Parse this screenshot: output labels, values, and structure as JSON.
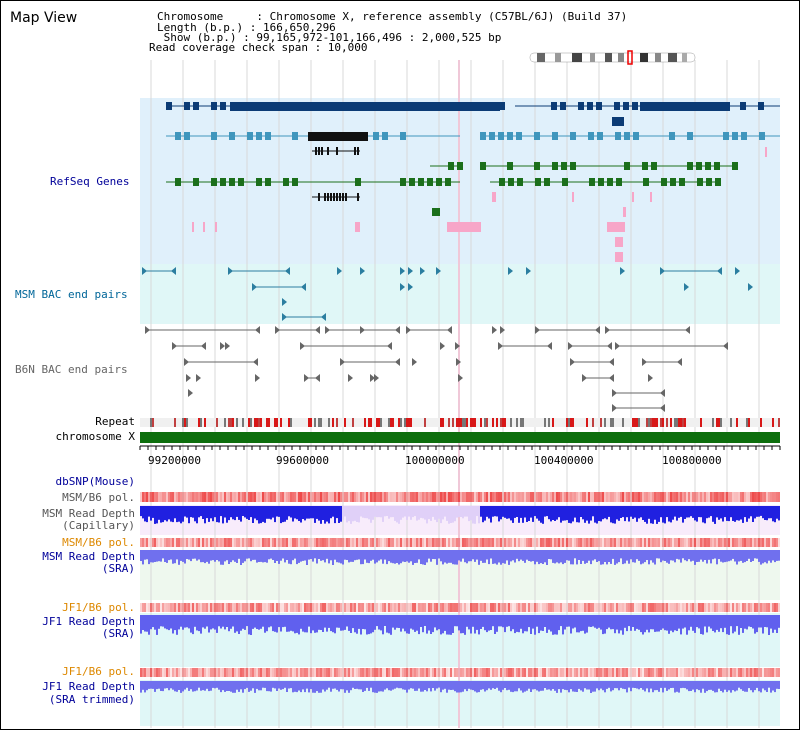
{
  "header": {
    "title": "Map View",
    "chromosome_line": "Chromosome     : Chromosome X, reference assembly (C57BL/6J) (Build 37)",
    "length_line": "Length (b.p.) : 166,650,296",
    "show_line": " Show (b.p.) : 99,165,972-101,166,496 : 2,000,525 bp",
    "span_line": "Read coverage check span : 10,000"
  },
  "tracks": {
    "refseq": "RefSeq Genes",
    "msm_bac": "MSM BAC end pairs",
    "b6n_bac": "B6N BAC end pairs",
    "repeat": "Repeat",
    "chromosome": "chromosome X",
    "dbsnp": "dbSNP(Mouse)",
    "msm_pol1": "MSM/B6 pol.",
    "msm_depth_cap_1": "MSM Read Depth",
    "msm_depth_cap_2": "(Capillary)",
    "msm_pol2": "MSM/B6 pol.",
    "msm_depth_sra_1": "MSM Read Depth",
    "msm_depth_sra_2": "(SRA)",
    "jf1_pol1": "JF1/B6 pol.",
    "jf1_depth_1": "JF1 Read Depth",
    "jf1_depth_2": "(SRA)",
    "jf1_pol2": "JF1/B6 pol.",
    "jf1_trim_1": "JF1 Read Depth",
    "jf1_trim_2": "(SRA trimmed)"
  },
  "axis": {
    "ticks": [
      "99200000",
      "99600000",
      "100000000",
      "100400000",
      "100800000"
    ]
  },
  "colors": {
    "navy": "#0b3b75",
    "teal": "#3f96bd",
    "green": "#1b6f1b",
    "pink": "#f7a6c8",
    "grey": "#707070",
    "chrom": "#0d6e0d",
    "dark_blue_text": "#000099",
    "orange_text": "#dd8800",
    "teal_text": "#006699"
  }
}
